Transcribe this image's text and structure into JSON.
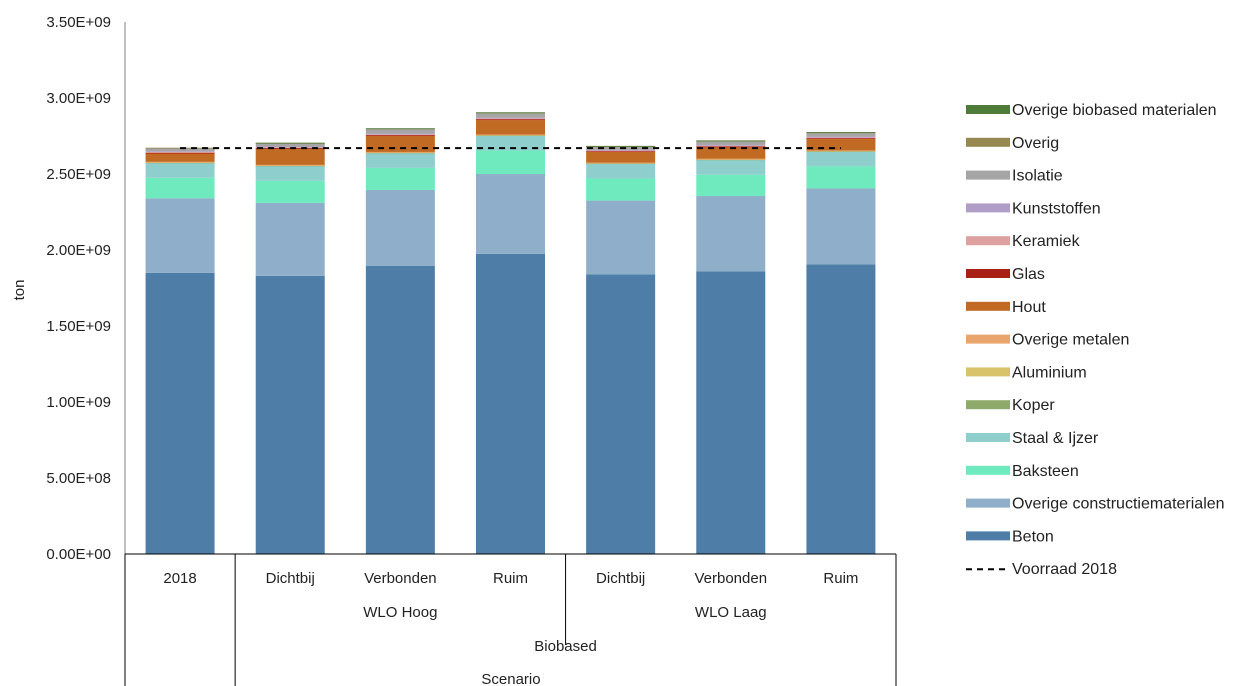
{
  "chart_data": {
    "type": "bar",
    "stacked": true,
    "ylabel": "ton",
    "xlabel": "Scenario",
    "ylim": [
      0,
      3500000000
    ],
    "ytick_step": 500000000,
    "ytick_labels": [
      "0.00E+00",
      "5.00E+08",
      "1.00E+09",
      "1.50E+09",
      "2.00E+09",
      "2.50E+09",
      "3.00E+09",
      "3.50E+09"
    ],
    "categories": [
      "2018",
      "Dichtbij",
      "Verbonden",
      "Ruim",
      "Dichtbij",
      "Verbonden",
      "Ruim"
    ],
    "group_level1": [
      {
        "label": "WLO Hoog",
        "start": 1,
        "end": 3
      },
      {
        "label": "WLO Laag",
        "start": 4,
        "end": 6
      }
    ],
    "group_level2": [
      {
        "label": "Biobased",
        "start": 1,
        "end": 6
      }
    ],
    "legend_position": "right",
    "series": [
      {
        "name": "Beton",
        "color": "#4e7ea8",
        "values": [
          1850000000,
          1830000000,
          1895000000,
          1975000000,
          1840000000,
          1860000000,
          1905000000
        ]
      },
      {
        "name": "Overige constructiematerialen",
        "color": "#8eaec9",
        "values": [
          490000000,
          480000000,
          500000000,
          525000000,
          485000000,
          495000000,
          500000000
        ]
      },
      {
        "name": "Baksteen",
        "color": "#6eeabe",
        "values": [
          135000000,
          145000000,
          145000000,
          155000000,
          145000000,
          140000000,
          145000000
        ]
      },
      {
        "name": "Staal & Ijzer",
        "color": "#8ecfcd",
        "values": [
          100000000,
          100000000,
          100000000,
          100000000,
          100000000,
          100000000,
          100000000
        ]
      },
      {
        "name": "Koper",
        "color": "#8daa6c",
        "values": [
          1000000,
          1000000,
          1000000,
          1000000,
          1000000,
          1000000,
          1000000
        ]
      },
      {
        "name": "Aluminium",
        "color": "#d8c36b",
        "values": [
          2000000,
          2000000,
          2000000,
          2000000,
          2000000,
          2000000,
          2000000
        ]
      },
      {
        "name": "Overige metalen",
        "color": "#e9a66c",
        "values": [
          2000000,
          2000000,
          2000000,
          2000000,
          2000000,
          2000000,
          2000000
        ]
      },
      {
        "name": "Hout",
        "color": "#c06a24",
        "values": [
          55000000,
          105000000,
          105000000,
          95000000,
          70000000,
          75000000,
          75000000
        ]
      },
      {
        "name": "Glas",
        "color": "#a81f13",
        "values": [
          5000000,
          6000000,
          6000000,
          6000000,
          5000000,
          6000000,
          6000000
        ]
      },
      {
        "name": "Keramiek",
        "color": "#dea19f",
        "values": [
          5000000,
          5000000,
          5000000,
          5000000,
          5000000,
          5000000,
          5000000
        ]
      },
      {
        "name": "Kunststoffen",
        "color": "#b09ec8",
        "values": [
          5000000,
          5000000,
          5000000,
          5000000,
          5000000,
          5000000,
          5000000
        ]
      },
      {
        "name": "Isolatie",
        "color": "#a5a5a5",
        "values": [
          20000000,
          20000000,
          30000000,
          30000000,
          20000000,
          25000000,
          25000000
        ]
      },
      {
        "name": "Overig",
        "color": "#968950",
        "values": [
          3000000,
          3000000,
          3000000,
          3000000,
          3000000,
          3000000,
          3000000
        ]
      },
      {
        "name": "Overige biobased materialen",
        "color": "#4e7b37",
        "values": [
          0,
          2000000,
          2000000,
          2000000,
          2000000,
          2000000,
          2000000
        ]
      }
    ],
    "reference_line": {
      "name": "Voorraad 2018",
      "value": 2670000000,
      "style": "dashed",
      "color": "#000000"
    }
  }
}
